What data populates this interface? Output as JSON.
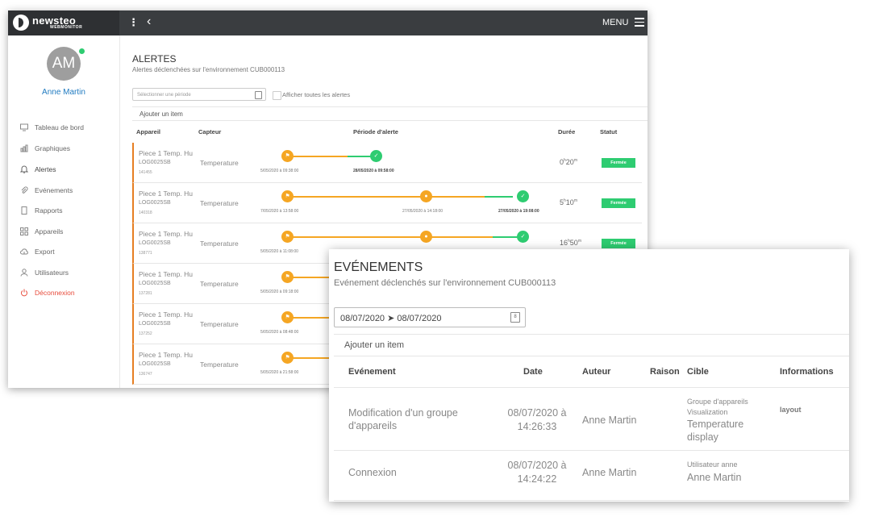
{
  "brand": {
    "name": "newsteo",
    "sub": "WEBMONITOR"
  },
  "topbar": {
    "menu_label": "MENU"
  },
  "user": {
    "initials": "AM",
    "name": "Anne Martin"
  },
  "nav": [
    {
      "label": "Tableau de bord",
      "icon": "monitor-icon"
    },
    {
      "label": "Graphiques",
      "icon": "bar-chart-icon"
    },
    {
      "label": "Alertes",
      "icon": "bell-icon"
    },
    {
      "label": "Evénements",
      "icon": "paperclip-icon"
    },
    {
      "label": "Rapports",
      "icon": "document-icon"
    },
    {
      "label": "Appareils",
      "icon": "grid-icon"
    },
    {
      "label": "Export",
      "icon": "cloud-upload-icon"
    },
    {
      "label": "Utilisateurs",
      "icon": "user-icon"
    },
    {
      "label": "Déconnexion",
      "icon": "power-icon"
    }
  ],
  "alertes": {
    "title": "ALERTES",
    "subtitle": "Alertes déclenchées sur l'environnement CUB000113",
    "period_placeholder": "Sélectionner une période",
    "show_all_label": "Afficher toutes les alertes",
    "add_item": "Ajouter un item",
    "headers": {
      "device": "Appareil",
      "sensor": "Capteur",
      "period": "Période d'alerte",
      "duration": "Durée",
      "status": "Statut"
    },
    "rows": [
      {
        "device": "Piece 1 Temp. Hu",
        "log": "LOG0025SB",
        "id": "141455",
        "sensor": "Temperature",
        "d1": "5/05/2020 à 09:38:00",
        "d2": "",
        "d3": "28/05/2020 à 09:58:00",
        "dur_h": "0",
        "dur_m": "20",
        "status": "Fermée"
      },
      {
        "device": "Piece 1 Temp. Hu",
        "log": "LOG0025SB",
        "id": "140318",
        "sensor": "Temperature",
        "d1": "7/05/2020 à 13:58:00",
        "d2": "27/05/2020 à 14:18:00",
        "d3": "27/05/2020 à 19:08:00",
        "dur_h": "5",
        "dur_m": "10",
        "status": "Fermée"
      },
      {
        "device": "Piece 1 Temp. Hu",
        "log": "LOG0025SB",
        "id": "138771",
        "sensor": "Temperature",
        "d1": "5/05/2020 à 11:08:00",
        "d2": "",
        "d3": "",
        "dur_h": "16",
        "dur_m": "50",
        "status": "Fermée"
      },
      {
        "device": "Piece 1 Temp. Hu",
        "log": "LOG0025SB",
        "id": "137281",
        "sensor": "Temperature",
        "d1": "5/05/2020 à 09:18:00",
        "d2": "",
        "d3": "",
        "dur_h": "",
        "dur_m": "",
        "status": ""
      },
      {
        "device": "Piece 1 Temp. Hu",
        "log": "LOG0025SB",
        "id": "137252",
        "sensor": "Temperature",
        "d1": "5/05/2020 à 08:48:00",
        "d2": "",
        "d3": "",
        "dur_h": "",
        "dur_m": "",
        "status": ""
      },
      {
        "device": "Piece 1 Temp. Hu",
        "log": "LOG0025SB",
        "id": "136747",
        "sensor": "Temperature",
        "d1": "5/05/2020 à 21:58:00",
        "d2": "",
        "d3": "",
        "dur_h": "",
        "dur_m": "",
        "status": ""
      }
    ]
  },
  "evenements": {
    "title": "EVÉNEMENTS",
    "subtitle": "Evénement déclenchés sur l'environnement CUB000113",
    "date_range": "08/07/2020 ➤ 08/07/2020",
    "add_item": "Ajouter un item",
    "headers": {
      "event": "Evénement",
      "date": "Date",
      "author": "Auteur",
      "reason": "Raison",
      "target": "Cible",
      "info": "Informations"
    },
    "rows": [
      {
        "event_l1": "Modification d'un groupe",
        "event_l2": "d'appareils",
        "date_l1": "08/07/2020 à",
        "date_l2": "14:26:33",
        "author": "Anne Martin",
        "reason": "",
        "target_small1": "Groupe d'appareils",
        "target_small2": "Visualization",
        "target_l1": "Temperature",
        "target_l2": "display",
        "info": "layout"
      },
      {
        "event_l1": "Connexion",
        "event_l2": "",
        "date_l1": "08/07/2020 à",
        "date_l2": "14:24:22",
        "author": "Anne Martin",
        "reason": "",
        "target_small1": "Utilisateur anne",
        "target_small2": "",
        "target_l1": "Anne Martin",
        "target_l2": "",
        "info": ""
      }
    ]
  },
  "colors": {
    "topbar": "#3a3d40",
    "accent_blue": "#1f7ac0",
    "alert_orange": "#f5a623",
    "success_green": "#2ecc71",
    "logout_red": "#e74c3c"
  }
}
